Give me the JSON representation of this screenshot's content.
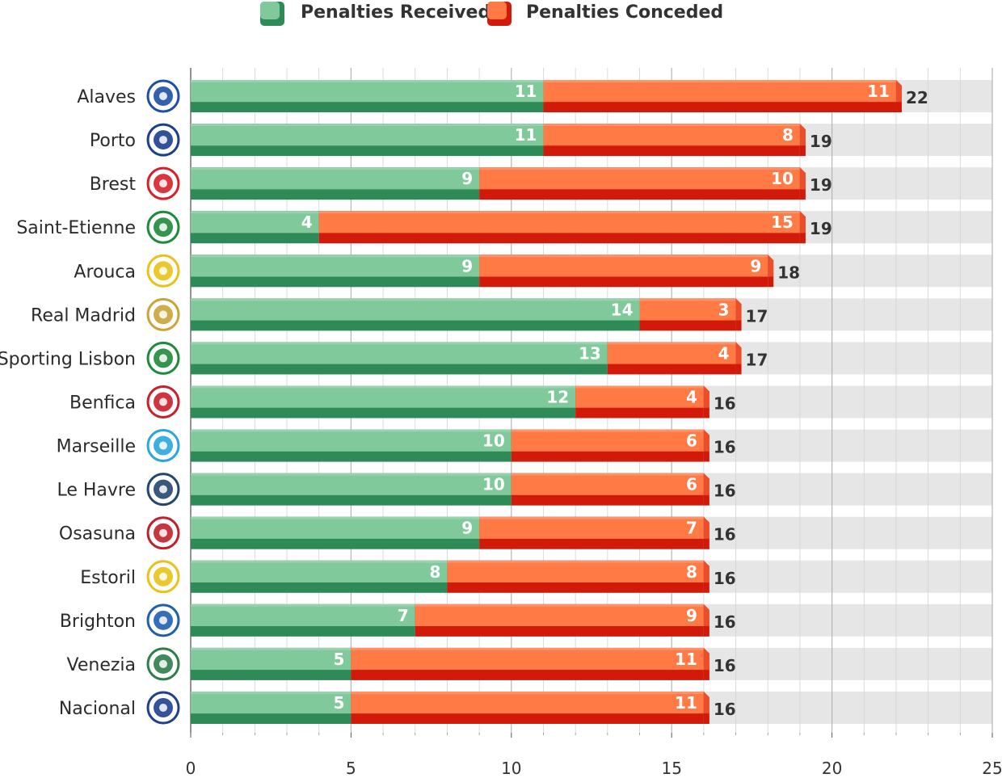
{
  "chart_data": {
    "type": "bar",
    "orientation": "horizontal",
    "stacked": true,
    "categories": [
      "Alaves",
      "Porto",
      "Brest",
      "Saint-Etienne",
      "Arouca",
      "Real Madrid",
      "Sporting Lisbon",
      "Benfica",
      "Marseille",
      "Le Havre",
      "Osasuna",
      "Estoril",
      "Brighton",
      "Venezia",
      "Nacional"
    ],
    "series": [
      {
        "name": "Penalties Received",
        "color": "#2e8b57",
        "light_color": "#7fc99a",
        "values": [
          11,
          11,
          9,
          4,
          9,
          14,
          13,
          12,
          10,
          10,
          9,
          8,
          7,
          5,
          5
        ]
      },
      {
        "name": "Penalties Conceded",
        "color": "#d21a0a",
        "light_color": "#ff7a45",
        "values": [
          11,
          8,
          10,
          15,
          9,
          3,
          4,
          4,
          6,
          6,
          7,
          8,
          9,
          11,
          11
        ]
      }
    ],
    "totals": [
      22,
      19,
      19,
      19,
      18,
      17,
      17,
      16,
      16,
      16,
      16,
      16,
      16,
      16,
      16
    ],
    "xlim": [
      0,
      25
    ],
    "xticks": [
      0,
      5,
      10,
      15,
      20,
      25
    ],
    "legend_position": "top",
    "grid": true,
    "team_logos": [
      {
        "icon": "alaves-crest-icon",
        "color": "#1f4fa3"
      },
      {
        "icon": "porto-crest-icon",
        "color": "#1b3f8f"
      },
      {
        "icon": "brest-crest-icon",
        "color": "#d6202a"
      },
      {
        "icon": "saint-etienne-crest-icon",
        "color": "#1f8a3c"
      },
      {
        "icon": "arouca-crest-icon",
        "color": "#e8c21a"
      },
      {
        "icon": "real-madrid-crest-icon",
        "color": "#c9a43a"
      },
      {
        "icon": "sporting-crest-icon",
        "color": "#1f8a3c"
      },
      {
        "icon": "benfica-crest-icon",
        "color": "#c8202a"
      },
      {
        "icon": "marseille-crest-icon",
        "color": "#2aa6dc"
      },
      {
        "icon": "le-havre-crest-icon",
        "color": "#25466e"
      },
      {
        "icon": "osasuna-crest-icon",
        "color": "#c0202a"
      },
      {
        "icon": "estoril-crest-icon",
        "color": "#e8c21a"
      },
      {
        "icon": "brighton-crest-icon",
        "color": "#1f5fb0"
      },
      {
        "icon": "venezia-crest-icon",
        "color": "#2e7d4a"
      },
      {
        "icon": "nacional-crest-icon",
        "color": "#1f3f8f"
      }
    ]
  }
}
